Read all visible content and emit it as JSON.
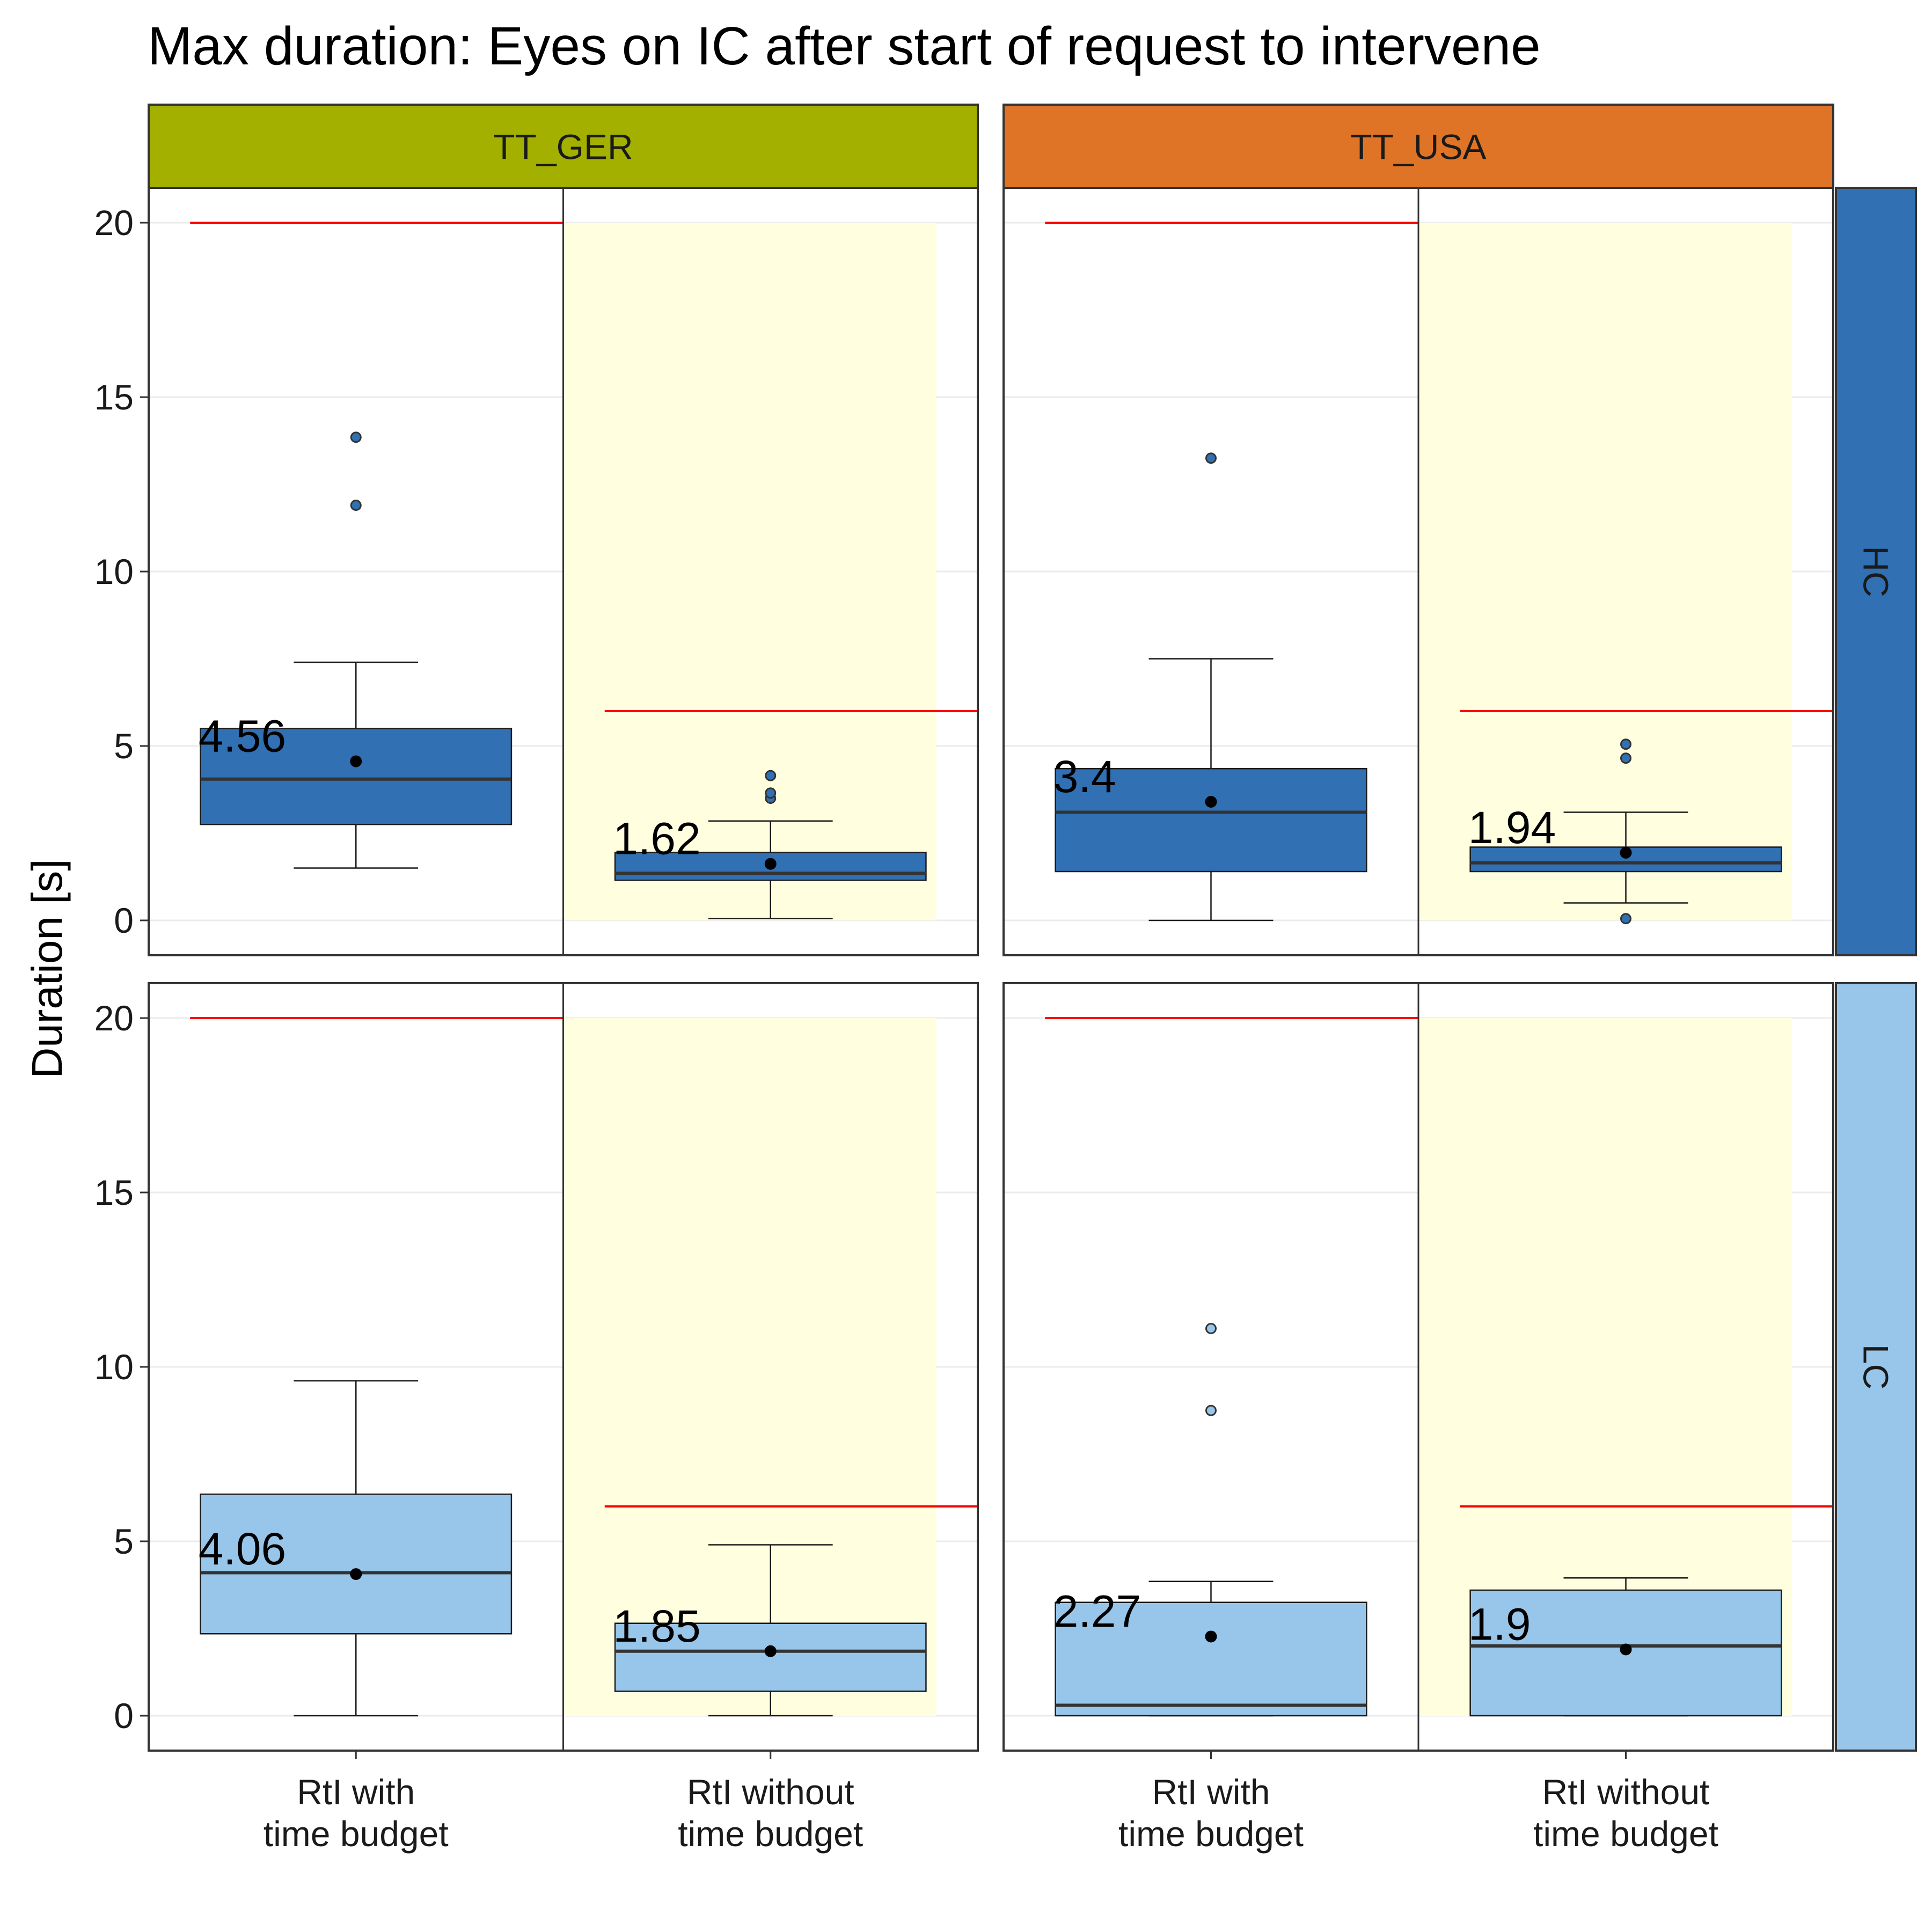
{
  "chart_data": {
    "type": "boxplot",
    "title": "Max duration: Eyes on IC after start of request to intervene",
    "ylabel": "Duration [s]",
    "xlabel": "",
    "ylim": [
      -1,
      21
    ],
    "yticks": [
      0,
      5,
      10,
      15,
      20
    ],
    "grid": true,
    "legend": "none",
    "categories": [
      "RtI with\ntime budget",
      "RtI without\ntime budget"
    ],
    "columns": [
      {
        "label": "TT_GER",
        "color": "#a3b000"
      },
      {
        "label": "TT_USA",
        "color": "#e07426"
      }
    ],
    "rows": [
      {
        "label": "HC",
        "color": "#3070b3"
      },
      {
        "label": "LC",
        "color": "#98c6ea"
      }
    ],
    "shading": {
      "category": "RtI without time budget",
      "color": "#ffffe0",
      "y_range": [
        0,
        20
      ]
    },
    "reference_lines": [
      {
        "category": "RtI with time budget",
        "y": 20,
        "color": "#ff0000"
      },
      {
        "category": "RtI without time budget",
        "y": 6,
        "color": "#ff0000"
      }
    ],
    "panels": [
      {
        "column": "TT_GER",
        "row": "HC",
        "boxes": [
          {
            "category": "RtI with\ntime budget",
            "q1": 2.75,
            "median": 4.05,
            "q3": 5.5,
            "whisker_low": 1.5,
            "whisker_high": 7.4,
            "mean": 4.56,
            "mean_label": "4.56",
            "outliers": [
              11.9,
              13.85
            ]
          },
          {
            "category": "RtI without\ntime budget",
            "q1": 1.15,
            "median": 1.35,
            "q3": 1.95,
            "whisker_low": 0.05,
            "whisker_high": 2.85,
            "mean": 1.62,
            "mean_label": "1.62",
            "outliers": [
              3.5,
              3.65,
              4.15
            ]
          }
        ]
      },
      {
        "column": "TT_USA",
        "row": "HC",
        "boxes": [
          {
            "category": "RtI with\ntime budget",
            "q1": 1.4,
            "median": 3.1,
            "q3": 4.35,
            "whisker_low": 0,
            "whisker_high": 7.5,
            "mean": 3.4,
            "mean_label": "3.4",
            "outliers": [
              13.25
            ]
          },
          {
            "category": "RtI without\ntime budget",
            "q1": 1.4,
            "median": 1.65,
            "q3": 2.1,
            "whisker_low": 0.5,
            "whisker_high": 3.1,
            "mean": 1.94,
            "mean_label": "1.94",
            "outliers": [
              0.05,
              4.65,
              5.05
            ]
          }
        ]
      },
      {
        "column": "TT_GER",
        "row": "LC",
        "boxes": [
          {
            "category": "RtI with\ntime budget",
            "q1": 2.35,
            "median": 4.1,
            "q3": 6.35,
            "whisker_low": 0,
            "whisker_high": 9.6,
            "mean": 4.06,
            "mean_label": "4.06",
            "outliers": []
          },
          {
            "category": "RtI without\ntime budget",
            "q1": 0.7,
            "median": 1.85,
            "q3": 2.65,
            "whisker_low": 0,
            "whisker_high": 4.9,
            "mean": 1.85,
            "mean_label": "1.85",
            "outliers": []
          }
        ]
      },
      {
        "column": "TT_USA",
        "row": "LC",
        "boxes": [
          {
            "category": "RtI with\ntime budget",
            "q1": 0,
            "median": 0.3,
            "q3": 3.25,
            "whisker_low": 0,
            "whisker_high": 3.85,
            "mean": 2.27,
            "mean_label": "2.27",
            "outliers": [
              8.75,
              11.1
            ]
          },
          {
            "category": "RtI without\ntime budget",
            "q1": 0,
            "median": 2.0,
            "q3": 3.6,
            "whisker_low": 0,
            "whisker_high": 3.95,
            "mean": 1.9,
            "mean_label": "1.9",
            "outliers": []
          }
        ]
      }
    ]
  }
}
